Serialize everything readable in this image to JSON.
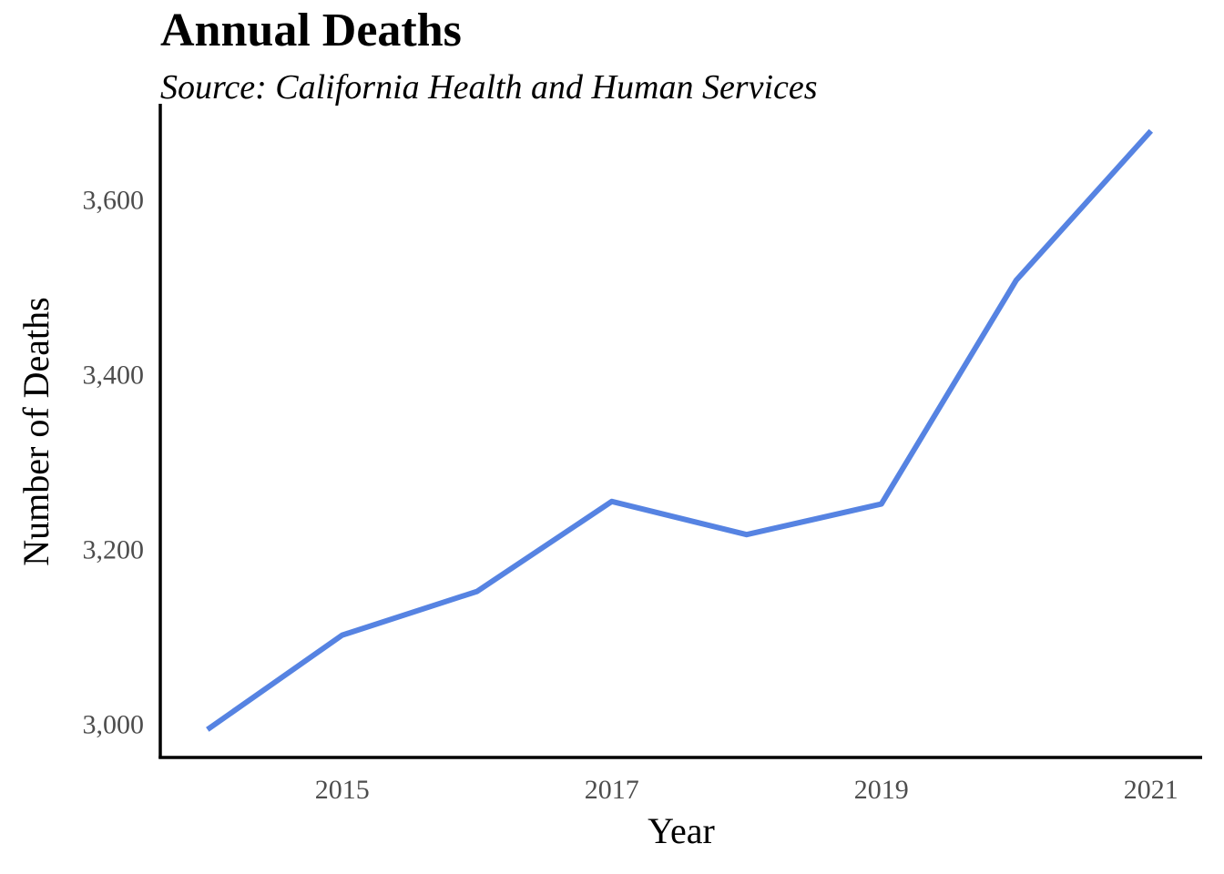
{
  "chart_data": {
    "type": "line",
    "title": "Annual Deaths",
    "subtitle": "Source: California Health and Human Services",
    "xlabel": "Year",
    "ylabel": "Number of Deaths",
    "x": [
      2014,
      2015,
      2016,
      2017,
      2018,
      2019,
      2020,
      2021
    ],
    "series": [
      {
        "name": "",
        "values": [
          2993,
          3101,
          3151,
          3254,
          3216,
          3251,
          3507,
          3678
        ],
        "color": "#5683e2"
      }
    ],
    "xlim": [
      2013.65,
      2021.38
    ],
    "ylim": [
      2961,
      3709
    ],
    "x_ticks": [
      2015,
      2017,
      2019,
      2021
    ],
    "x_tick_labels": [
      "2015",
      "2017",
      "2019",
      "2021"
    ],
    "y_ticks": [
      3000,
      3200,
      3400,
      3600
    ],
    "y_tick_labels": [
      "3,000",
      "3,200",
      "3,400",
      "3,600"
    ],
    "grid": false,
    "legend": "none"
  }
}
